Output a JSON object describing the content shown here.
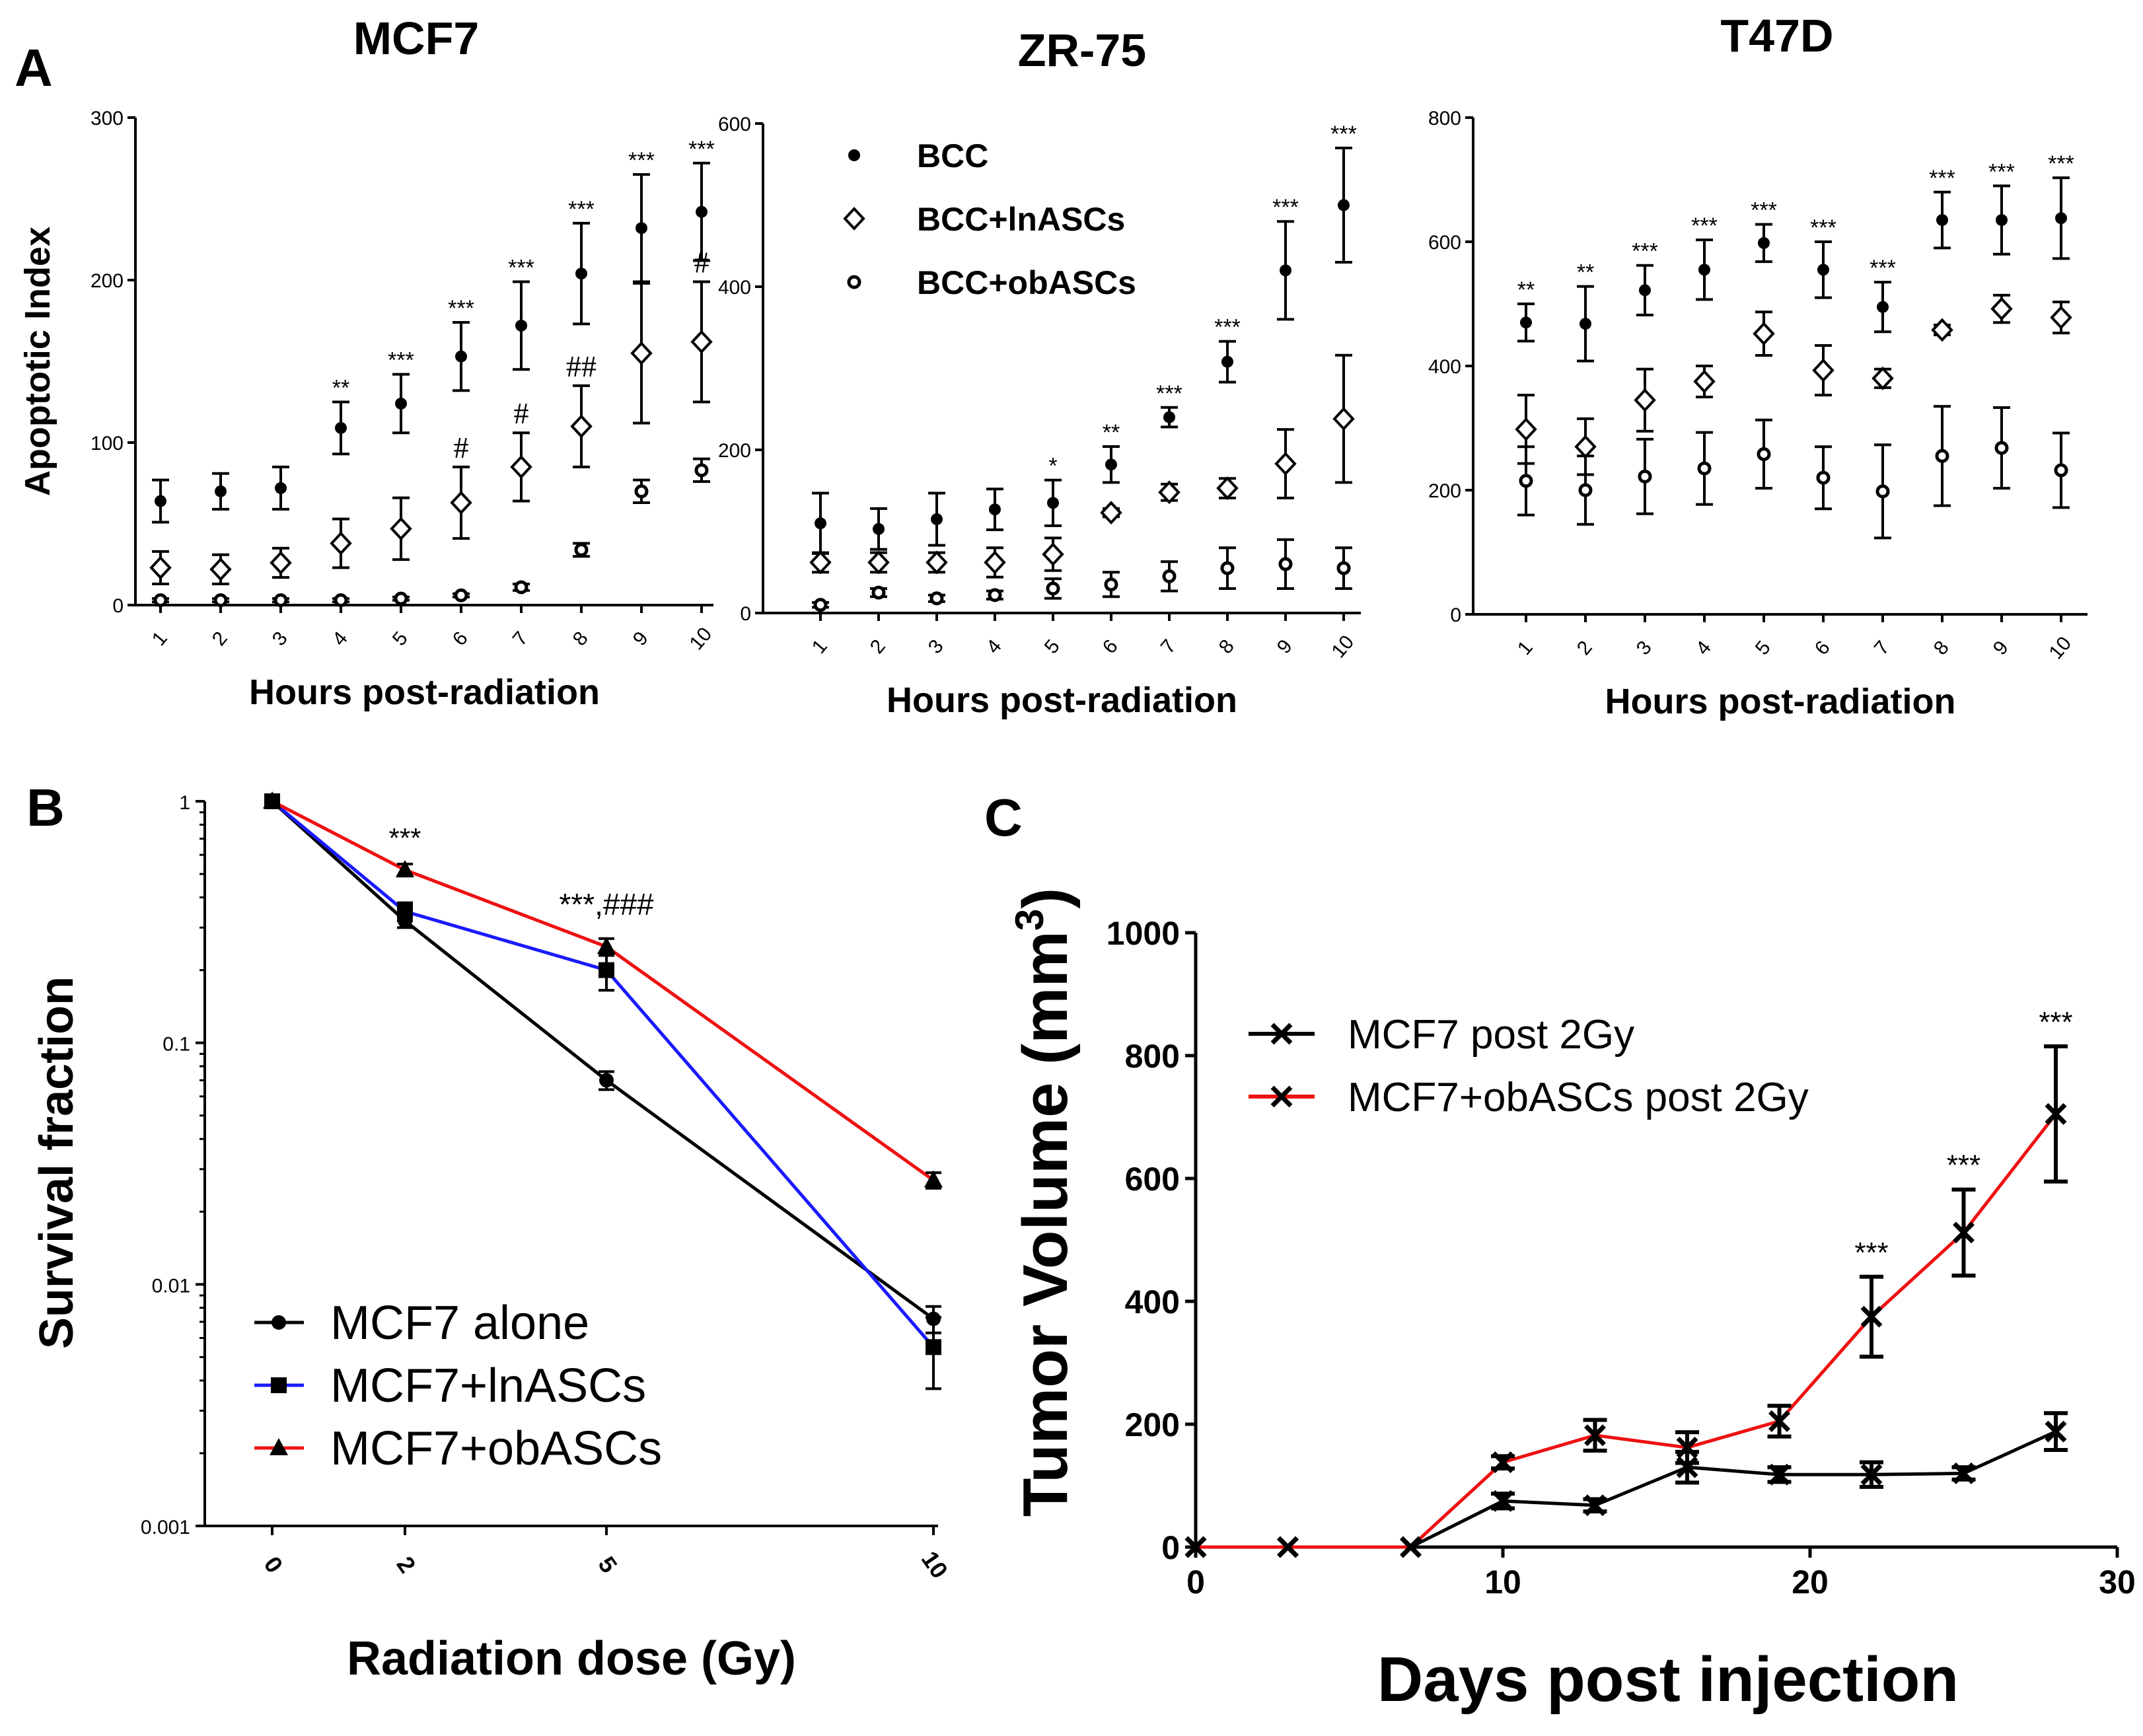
{
  "panels": {
    "A": "A",
    "B": "B",
    "C": "C"
  },
  "chart_data": [
    {
      "id": "mcf7",
      "type": "scatter",
      "title": "MCF7",
      "xlabel": "Hours post-radiation",
      "ylabel": "Apoptotic Index",
      "ylim": [
        0,
        300
      ],
      "yticks": [
        "0",
        "100",
        "200",
        "300"
      ],
      "categories": [
        "1",
        "2",
        "3",
        "4",
        "5",
        "6",
        "7",
        "8",
        "9",
        "10"
      ],
      "series": [
        {
          "name": "BCC",
          "values": [
            64,
            70,
            72,
            109,
            124,
            153,
            172,
            204,
            232,
            242
          ],
          "errors": [
            13,
            11,
            13,
            16,
            18,
            21,
            27,
            31,
            33,
            30
          ]
        },
        {
          "name": "BCC+lnASCs",
          "values": [
            23,
            22,
            26,
            38,
            47,
            63,
            85,
            110,
            155,
            162
          ],
          "errors": [
            10,
            9,
            9,
            15,
            19,
            22,
            21,
            25,
            43,
            37
          ]
        },
        {
          "name": "BCC+obASCs",
          "values": [
            3,
            3,
            3,
            3,
            4,
            6,
            11,
            34,
            70,
            83
          ],
          "errors": [
            1,
            1,
            1,
            1,
            1,
            1,
            2,
            4,
            7,
            7
          ]
        }
      ],
      "significance": [
        "",
        "",
        "",
        "**",
        "***",
        "***",
        "***",
        "***",
        "***",
        "***"
      ],
      "hashes": [
        "",
        "",
        "",
        "",
        "",
        "#",
        "#",
        "##",
        "",
        "#"
      ]
    },
    {
      "id": "zr75",
      "type": "scatter",
      "title": "ZR-75",
      "xlabel": "Hours post-radiation",
      "ylabel": "",
      "ylim": [
        0,
        600
      ],
      "yticks": [
        "0",
        "200",
        "400",
        "600"
      ],
      "categories": [
        "1",
        "2",
        "3",
        "4",
        "5",
        "6",
        "7",
        "8",
        "9",
        "10"
      ],
      "legend": [
        "BCC",
        "BCC+lnASCs",
        "BCC+obASCs"
      ],
      "series": [
        {
          "name": "BCC",
          "values": [
            110,
            103,
            115,
            127,
            135,
            182,
            240,
            308,
            420,
            500
          ],
          "errors": [
            37,
            25,
            32,
            25,
            28,
            22,
            12,
            25,
            60,
            70
          ]
        },
        {
          "name": "BCC+lnASCs",
          "values": [
            62,
            62,
            62,
            62,
            72,
            123,
            148,
            153,
            183,
            238
          ],
          "errors": [
            12,
            12,
            12,
            18,
            20,
            5,
            10,
            12,
            42,
            78
          ]
        },
        {
          "name": "BCC+obASCs",
          "values": [
            10,
            25,
            18,
            22,
            30,
            35,
            45,
            55,
            60,
            55
          ],
          "errors": [
            3,
            5,
            4,
            5,
            12,
            15,
            18,
            25,
            30,
            25
          ]
        }
      ],
      "significance": [
        "",
        "",
        "",
        "",
        "*",
        "**",
        "***",
        "***",
        "***",
        "***"
      ]
    },
    {
      "id": "t47d",
      "type": "scatter",
      "title": "T47D",
      "xlabel": "Hours post-radiation",
      "ylabel": "",
      "ylim": [
        0,
        800
      ],
      "yticks": [
        "0",
        "200",
        "400",
        "600",
        "800"
      ],
      "categories": [
        "1",
        "2",
        "3",
        "4",
        "5",
        "6",
        "7",
        "8",
        "9",
        "10"
      ],
      "series": [
        {
          "name": "BCC",
          "values": [
            470,
            468,
            522,
            555,
            598,
            555,
            495,
            635,
            635,
            638
          ],
          "errors": [
            30,
            60,
            40,
            48,
            30,
            45,
            40,
            45,
            55,
            65
          ]
        },
        {
          "name": "BCC+lnASCs",
          "values": [
            298,
            270,
            345,
            375,
            452,
            393,
            380,
            458,
            492,
            478
          ],
          "errors": [
            55,
            45,
            50,
            25,
            35,
            40,
            15,
            8,
            22,
            25
          ]
        },
        {
          "name": "BCC+obASCs",
          "values": [
            215,
            200,
            222,
            235,
            258,
            220,
            198,
            255,
            268,
            232
          ],
          "errors": [
            55,
            55,
            60,
            58,
            55,
            50,
            75,
            80,
            65,
            60
          ]
        }
      ],
      "significance": [
        "**",
        "**",
        "***",
        "***",
        "***",
        "***",
        "***",
        "***",
        "***",
        "***"
      ]
    },
    {
      "id": "survival",
      "type": "line",
      "title": "",
      "xlabel": "Radiation dose (Gy)",
      "ylabel": "Survival fraction",
      "yscale": "log",
      "ylim": [
        0.001,
        1
      ],
      "yticks": [
        "1",
        "0.1",
        "0.01",
        "0.001"
      ],
      "x": [
        0,
        2,
        5,
        10
      ],
      "xticks": [
        "0",
        "2",
        "5",
        "10"
      ],
      "series": [
        {
          "name": "MCF7 alone",
          "color": "#000000",
          "marker": "circle",
          "values": [
            1,
            0.32,
            0.07,
            0.0072
          ],
          "errors": [
            0.03,
            0.02,
            0.006,
            0.0009
          ]
        },
        {
          "name": "MCF7+lnASCs",
          "color": "#1a1aff",
          "marker": "square",
          "values": [
            1,
            0.35,
            0.2,
            0.0055
          ],
          "errors": [
            0.03,
            0.03,
            0.035,
            0.0018
          ]
        },
        {
          "name": "MCF7+obASCs",
          "color": "#ee1111",
          "marker": "triangle",
          "values": [
            1,
            0.52,
            0.25,
            0.027
          ],
          "errors": [
            0.03,
            0.03,
            0.02,
            0.002
          ]
        }
      ],
      "annotations": [
        "***",
        "***,###"
      ]
    },
    {
      "id": "tumor",
      "type": "line",
      "title": "",
      "xlabel": "Days post injection",
      "ylabel": "Tumor Volume (mm",
      "ylabel_sup": "3",
      "ylabel_close": ")",
      "xlim": [
        0,
        30
      ],
      "ylim": [
        0,
        1000
      ],
      "xticks": [
        "0",
        "10",
        "20",
        "30"
      ],
      "yticks": [
        "0",
        "200",
        "400",
        "600",
        "800",
        "1000"
      ],
      "x": [
        0,
        3,
        7,
        10,
        13,
        16,
        19,
        22,
        25,
        28
      ],
      "series": [
        {
          "name": "MCF7 post 2Gy",
          "color": "#000000",
          "values": [
            0,
            0,
            0,
            75,
            68,
            130,
            118,
            118,
            120,
            188
          ],
          "errors": [
            0,
            0,
            0,
            12,
            10,
            25,
            12,
            20,
            10,
            30
          ]
        },
        {
          "name": "MCF7+obASCs post 2Gy",
          "color": "#ee1111",
          "values": [
            0,
            0,
            0,
            138,
            182,
            162,
            205,
            375,
            512,
            705
          ],
          "errors": [
            0,
            0,
            0,
            10,
            25,
            25,
            25,
            65,
            70,
            110
          ]
        }
      ],
      "annotations": [
        "***",
        "***",
        "***"
      ]
    }
  ]
}
